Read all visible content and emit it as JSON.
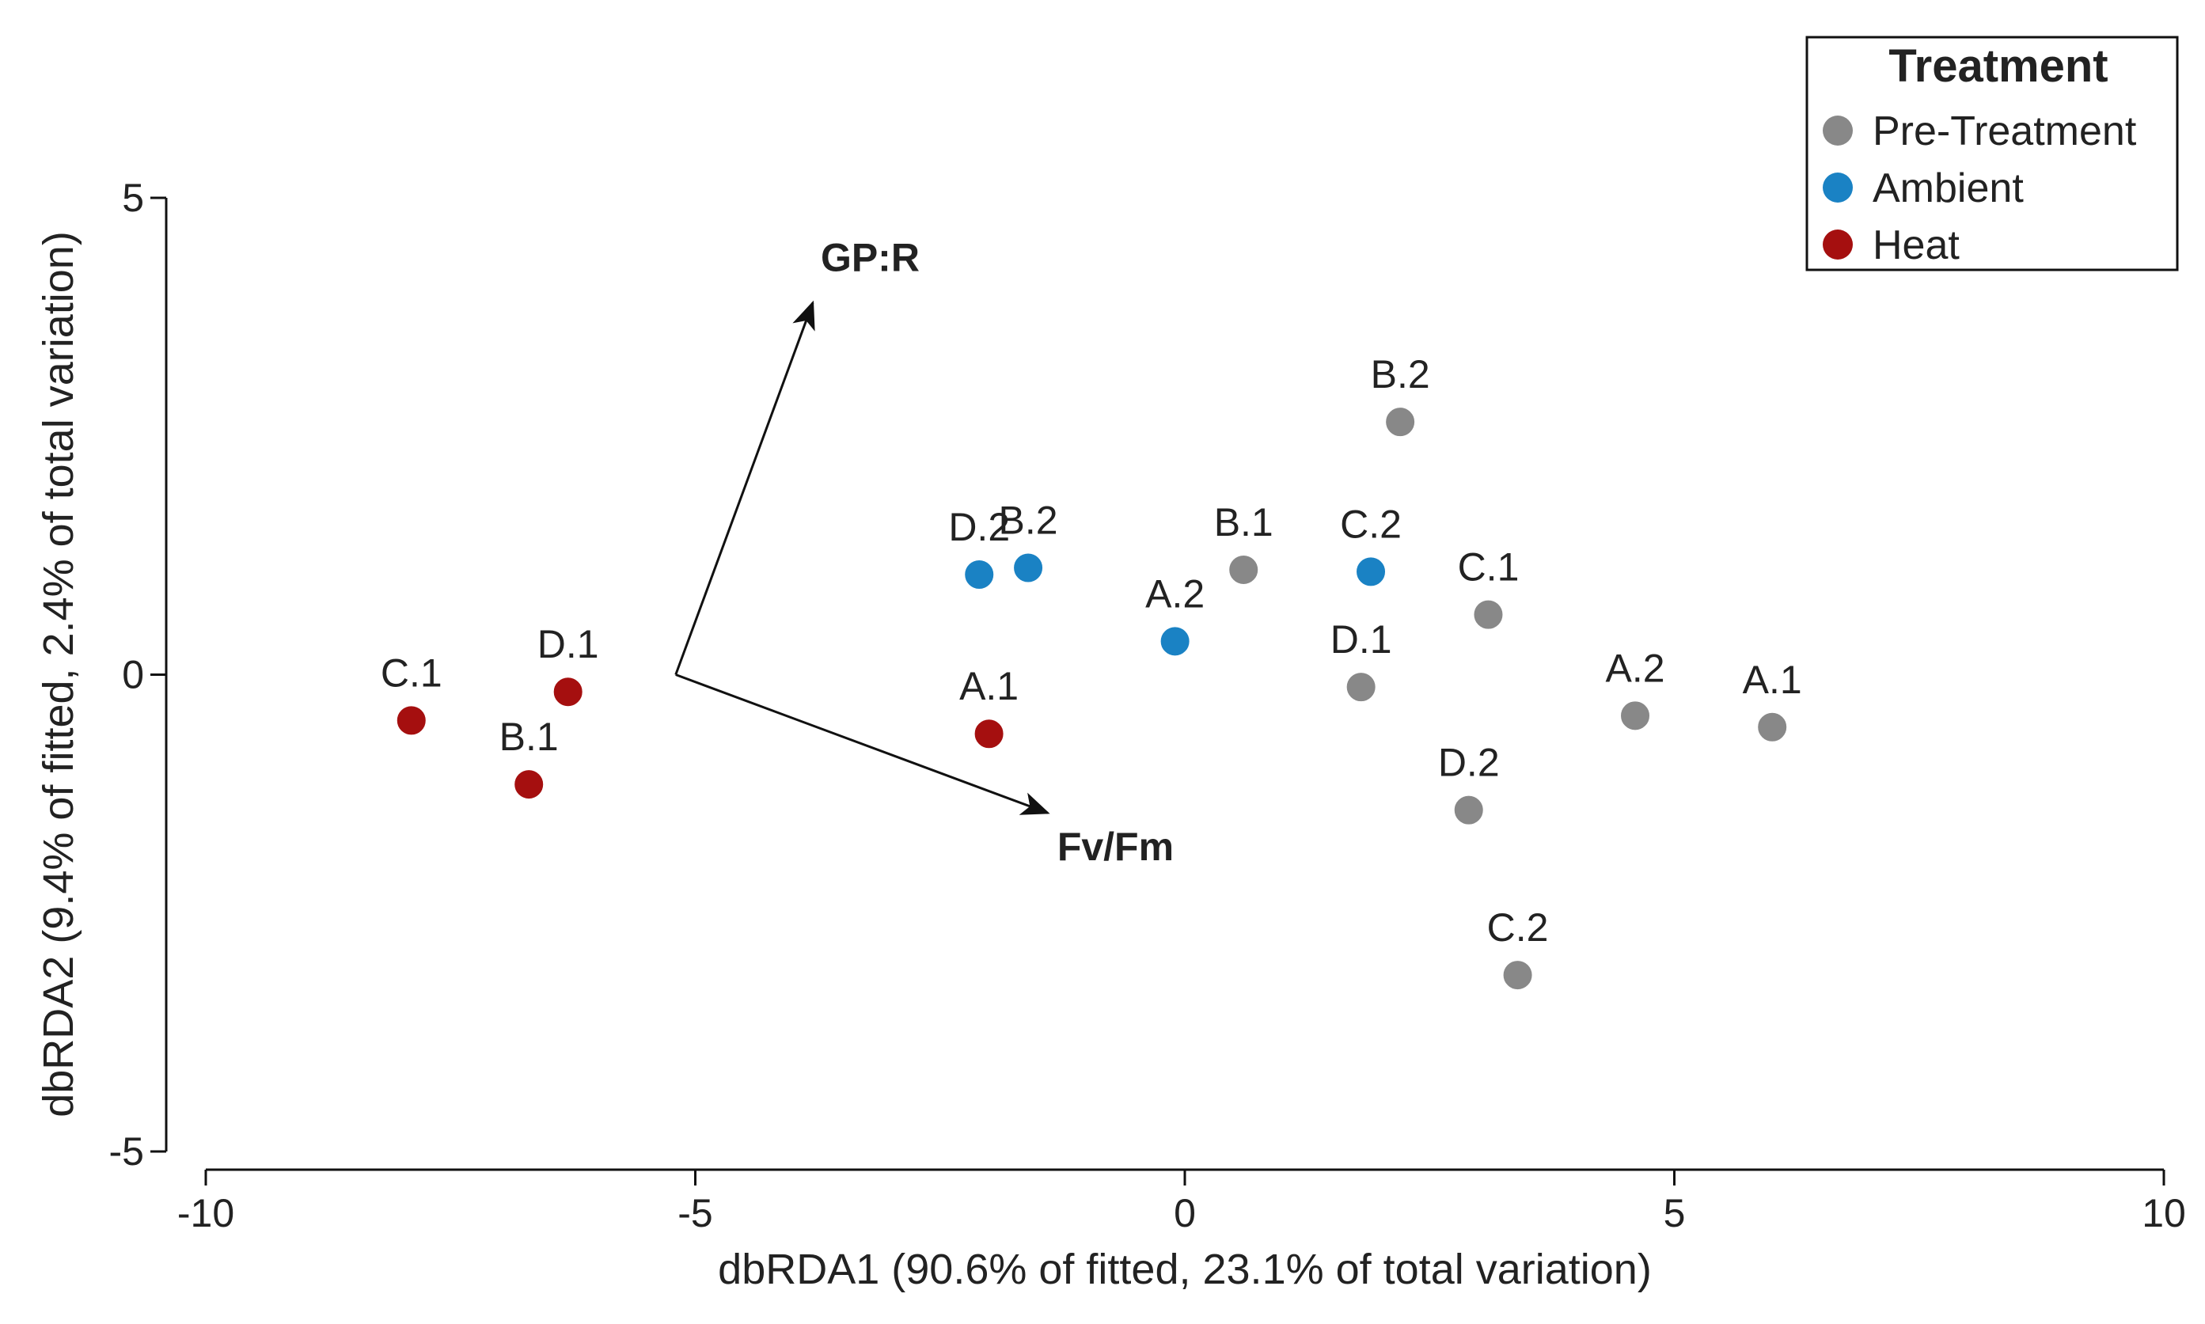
{
  "chart_data": {
    "type": "scatter",
    "xlabel": "dbRDA1 (90.6% of fitted, 23.1% of total variation)",
    "ylabel": "dbRDA2 (9.4% of fitted, 2.4% of total variation)",
    "xlim": [
      -10,
      10
    ],
    "ylim": [
      -5,
      5
    ],
    "x_ticks": [
      -10,
      -5,
      0,
      5,
      10
    ],
    "y_ticks": [
      -5,
      0,
      5
    ],
    "grid": false,
    "legend": {
      "title": "Treatment",
      "position": "top-right",
      "entries": [
        {
          "name": "Pre-Treatment",
          "color": "#888888"
        },
        {
          "name": "Ambient",
          "color": "#1a82c4"
        },
        {
          "name": "Heat",
          "color": "#a50f0f"
        }
      ]
    },
    "series": [
      {
        "name": "Pre-Treatment",
        "color": "#888888",
        "points": [
          {
            "label": "B.2",
            "x": 2.2,
            "y": 2.65
          },
          {
            "label": "B.1",
            "x": 0.6,
            "y": 1.1
          },
          {
            "label": "C.1",
            "x": 3.1,
            "y": 0.63
          },
          {
            "label": "D.1",
            "x": 1.8,
            "y": -0.13
          },
          {
            "label": "A.2",
            "x": 4.6,
            "y": -0.43
          },
          {
            "label": "A.1",
            "x": 6.0,
            "y": -0.55
          },
          {
            "label": "D.2",
            "x": 2.9,
            "y": -1.42
          },
          {
            "label": "C.2",
            "x": 3.4,
            "y": -3.15
          }
        ]
      },
      {
        "name": "Ambient",
        "color": "#1a82c4",
        "points": [
          {
            "label": "D.2",
            "x": -2.1,
            "y": 1.05
          },
          {
            "label": "B.2",
            "x": -1.6,
            "y": 1.12
          },
          {
            "label": "A.2",
            "x": -0.1,
            "y": 0.35
          },
          {
            "label": "C.2",
            "x": 1.9,
            "y": 1.08
          }
        ]
      },
      {
        "name": "Heat",
        "color": "#a50f0f",
        "points": [
          {
            "label": "C.1",
            "x": -7.9,
            "y": -0.48
          },
          {
            "label": "D.1",
            "x": -6.3,
            "y": -0.18
          },
          {
            "label": "B.1",
            "x": -6.7,
            "y": -1.15
          },
          {
            "label": "A.1",
            "x": -2.0,
            "y": -0.62
          }
        ]
      }
    ],
    "vectors": {
      "origin": [
        -5.2,
        0
      ],
      "items": [
        {
          "label": "GP:R",
          "x": -3.8,
          "y": 3.9
        },
        {
          "label": "Fv/Fm",
          "x": -1.4,
          "y": -1.45
        }
      ]
    }
  }
}
